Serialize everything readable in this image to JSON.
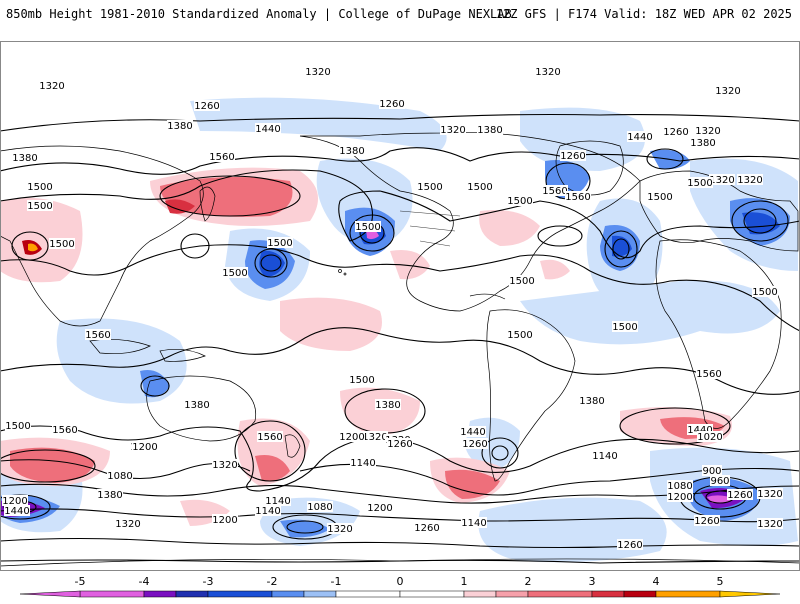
{
  "header": {
    "title": "850mb Height 1981-2010 Standardized Anomaly | College of DuPage NEXLAB",
    "run_info": "12Z GFS | F174 Valid: 18Z WED APR 02 2025"
  },
  "colors": {
    "anomaly_scale": [
      {
        "value": -5,
        "color": "#e060e0"
      },
      {
        "value": -4,
        "color": "#7a10c0"
      },
      {
        "value": -3.5,
        "color": "#2030b0"
      },
      {
        "value": -3,
        "color": "#1a4fd6"
      },
      {
        "value": -2,
        "color": "#5a8ef0"
      },
      {
        "value": -1.5,
        "color": "#9cc0f5"
      },
      {
        "value": -1,
        "color": "#cfe2fb"
      },
      {
        "value": 1,
        "color": "#fbd0d6"
      },
      {
        "value": 1.5,
        "color": "#f6a0aa"
      },
      {
        "value": 2,
        "color": "#ee6f7b"
      },
      {
        "value": 3,
        "color": "#d83040"
      },
      {
        "value": 3.5,
        "color": "#b80010"
      },
      {
        "value": 4,
        "color": "#ffa000"
      },
      {
        "value": 5,
        "color": "#ffc800"
      }
    ],
    "contour": "#000000",
    "coastline": "#000000"
  },
  "colorbar": {
    "tick_labels": [
      "-5",
      "-4",
      "-3",
      "-2",
      "-1",
      "0",
      "1",
      "2",
      "3",
      "4",
      "5"
    ]
  },
  "contour_labels": [
    "1320",
    "1320",
    "1320",
    "1320",
    "1260",
    "1260",
    "1380",
    "1320",
    "1260",
    "1440",
    "1380",
    "1260",
    "1260",
    "1320",
    "1320",
    "1380",
    "1560",
    "1380",
    "1440",
    "1440",
    "1380",
    "1500",
    "1500",
    "1500",
    "1560",
    "1320",
    "1500",
    "1500",
    "1560",
    "1500",
    "1500",
    "1500",
    "1500",
    "1500",
    "1500",
    "1500",
    "1500",
    "1500",
    "1560",
    "1500",
    "1560",
    "1380",
    "1560",
    "1380",
    "1380",
    "1500",
    "1440",
    "1440",
    "1500",
    "1560",
    "1260",
    "1320",
    "1200",
    "1320",
    "1200",
    "1260",
    "1140",
    "1200",
    "1140",
    "1080",
    "1020",
    "960",
    "900",
    "1080",
    "1200",
    "1320",
    "1260",
    "1140",
    "1080",
    "1140",
    "1200",
    "1260",
    "1320",
    "1200",
    "1260",
    "1140",
    "1320",
    "1200",
    "1380",
    "1320",
    "1260",
    "1440",
    "1320",
    "1260"
  ]
}
